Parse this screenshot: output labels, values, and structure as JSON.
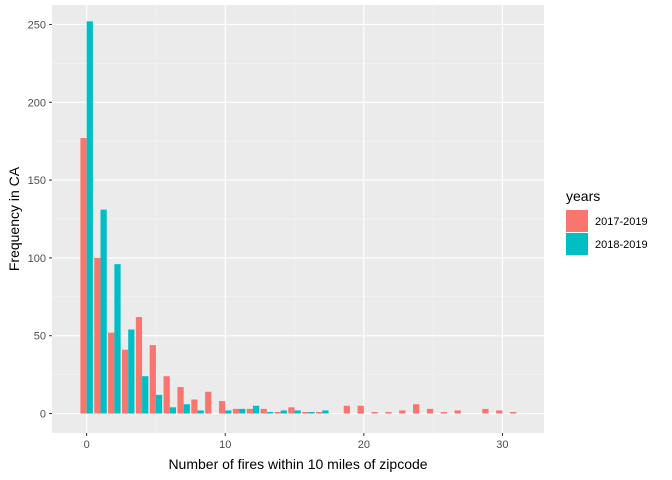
{
  "chart_data": {
    "type": "bar",
    "xlabel": "Number of fires within 10 miles of zipcode",
    "ylabel": "Frequency in CA",
    "xlim": [
      -2.5,
      33.0
    ],
    "ylim": [
      -12.5,
      262.5
    ],
    "x_ticks": [
      {
        "value": 0,
        "label": "0"
      },
      {
        "value": 10,
        "label": "10"
      },
      {
        "value": 20,
        "label": "20"
      },
      {
        "value": 30,
        "label": "30"
      }
    ],
    "y_ticks": [
      {
        "value": 0,
        "label": "0"
      },
      {
        "value": 50,
        "label": "50"
      },
      {
        "value": 100,
        "label": "100"
      },
      {
        "value": 150,
        "label": "150"
      },
      {
        "value": 200,
        "label": "200"
      },
      {
        "value": 250,
        "label": "250"
      }
    ],
    "grid": true,
    "legend": {
      "title": "years",
      "position": "right"
    },
    "series": [
      {
        "name": "2017-2019",
        "color": "#F8766D",
        "points": [
          [
            0,
            177
          ],
          [
            1,
            100
          ],
          [
            2,
            52
          ],
          [
            3,
            41
          ],
          [
            4,
            62
          ],
          [
            5,
            44
          ],
          [
            6,
            24
          ],
          [
            7,
            17
          ],
          [
            8,
            9
          ],
          [
            9,
            14
          ],
          [
            10,
            8
          ],
          [
            11,
            3
          ],
          [
            12,
            3
          ],
          [
            13,
            3
          ],
          [
            14,
            1
          ],
          [
            15,
            4
          ],
          [
            16,
            1
          ],
          [
            17,
            1
          ],
          [
            19,
            5
          ],
          [
            20,
            5
          ],
          [
            21,
            1
          ],
          [
            22,
            1
          ],
          [
            23,
            2
          ],
          [
            24,
            6
          ],
          [
            25,
            3
          ],
          [
            26,
            1
          ],
          [
            27,
            2
          ],
          [
            29,
            3
          ],
          [
            30,
            2
          ],
          [
            31,
            1
          ]
        ]
      },
      {
        "name": "2018-2019",
        "color": "#00BFC4",
        "points": [
          [
            0,
            252
          ],
          [
            1,
            131
          ],
          [
            2,
            96
          ],
          [
            3,
            54
          ],
          [
            4,
            24
          ],
          [
            5,
            12
          ],
          [
            6,
            4
          ],
          [
            7,
            6
          ],
          [
            8,
            2
          ],
          [
            10,
            2
          ],
          [
            11,
            3
          ],
          [
            12,
            5
          ],
          [
            13,
            1
          ],
          [
            14,
            2
          ],
          [
            15,
            2
          ],
          [
            16,
            1
          ],
          [
            17,
            2
          ]
        ]
      }
    ]
  }
}
